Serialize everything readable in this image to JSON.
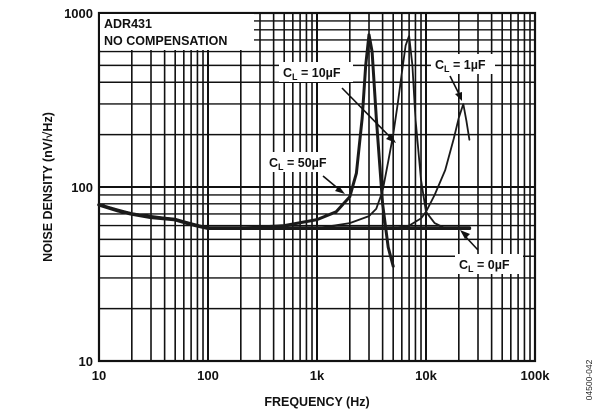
{
  "chart_data": {
    "type": "line",
    "xlabel": "FREQUENCY (Hz)",
    "ylabel": "NOISE DENSITY (nV/√Hz)",
    "xscale": "log",
    "yscale": "log",
    "xlim": [
      10,
      100000
    ],
    "ylim": [
      10,
      1000
    ],
    "grid": true,
    "x_ticks": [
      {
        "v": 10,
        "label": "10"
      },
      {
        "v": 100,
        "label": "100"
      },
      {
        "v": 1000,
        "label": "1k"
      },
      {
        "v": 10000,
        "label": "10k"
      },
      {
        "v": 100000,
        "label": "100k"
      }
    ],
    "y_ticks": [
      {
        "v": 10,
        "label": "10"
      },
      {
        "v": 100,
        "label": "100"
      },
      {
        "v": 1000,
        "label": "1000"
      }
    ],
    "title_box": [
      "ADR431",
      "NO COMPENSATION"
    ],
    "figure_code": "04500-042",
    "series": [
      {
        "name": "C_L = 0µF",
        "x": [
          10,
          15,
          20,
          30,
          50,
          70,
          100,
          200,
          500,
          1000,
          2000,
          5000,
          10000,
          20000,
          25000
        ],
        "y": [
          79,
          73,
          70,
          67,
          65,
          61,
          58,
          58,
          58,
          58,
          58,
          58,
          58,
          58,
          58
        ]
      },
      {
        "name": "C_L = 50µF",
        "x": [
          10,
          20,
          50,
          100,
          200,
          500,
          1000,
          1500,
          2000,
          2300,
          2600,
          2800,
          3000,
          3200,
          3500,
          4000,
          4500,
          5000
        ],
        "y": [
          79,
          70,
          65,
          58,
          58,
          60,
          65,
          72,
          88,
          120,
          250,
          500,
          750,
          600,
          250,
          80,
          45,
          35
        ]
      },
      {
        "name": "C_L = 10µF",
        "x": [
          1000,
          2000,
          3000,
          3500,
          4000,
          4500,
          5000,
          5500,
          6000,
          6500,
          7000,
          7500,
          8000,
          9000,
          10000,
          12000,
          15000
        ],
        "y": [
          58,
          62,
          68,
          75,
          95,
          140,
          200,
          300,
          450,
          650,
          740,
          500,
          250,
          110,
          72,
          62,
          58
        ]
      },
      {
        "name": "C_L = 1µF",
        "x": [
          5000,
          7000,
          9000,
          10000,
          12000,
          15000,
          18000,
          20000,
          22000,
          23500,
          25000
        ],
        "y": [
          58,
          60,
          66,
          72,
          90,
          125,
          190,
          250,
          300,
          240,
          187
        ]
      }
    ],
    "annotations": [
      {
        "c": "C",
        "sub": "L",
        "rest": " = 10µF"
      },
      {
        "c": "C",
        "sub": "L",
        "rest": " = 1µF"
      },
      {
        "c": "C",
        "sub": "L",
        "rest": " = 50µF"
      },
      {
        "c": "C",
        "sub": "L",
        "rest": " = 0µF"
      }
    ],
    "line_color": "#1a1a1a"
  }
}
